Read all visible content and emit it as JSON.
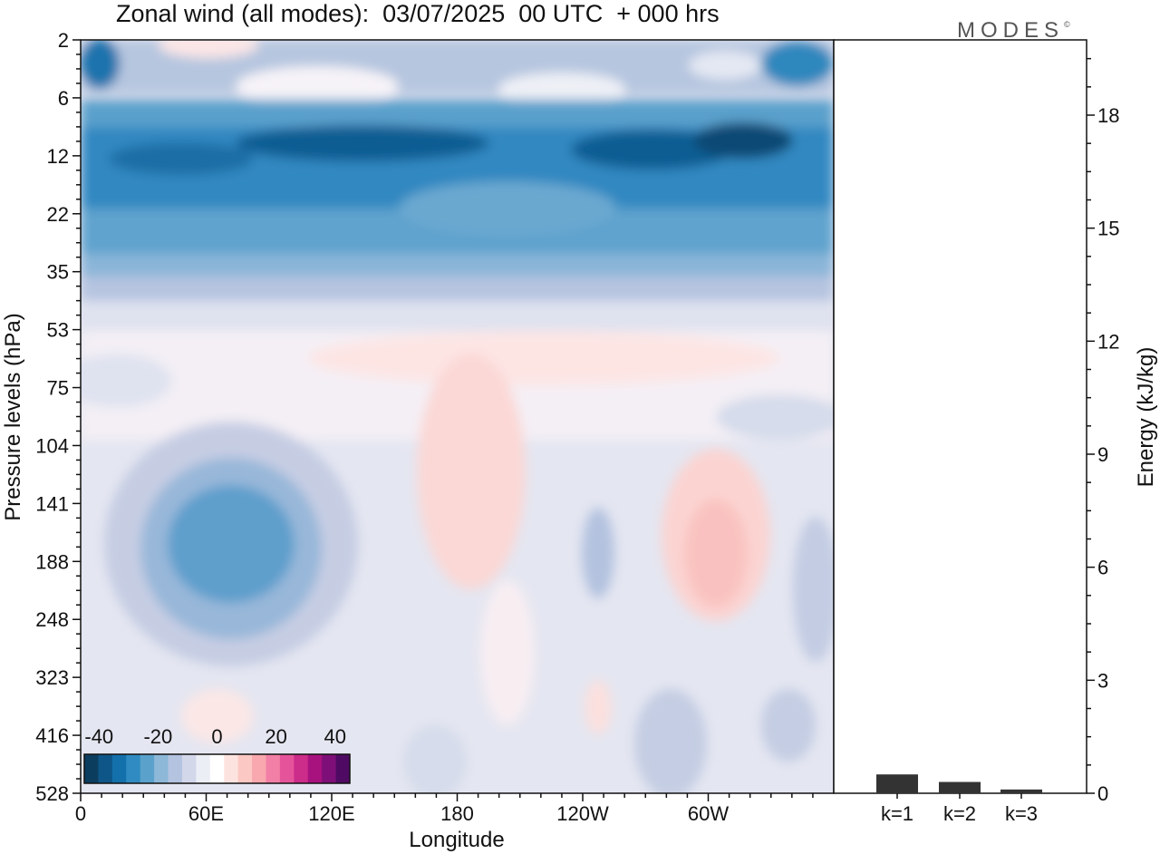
{
  "title": "Zonal wind (all modes):  03/07/2025  00 UTC  + 000 hrs",
  "logo": {
    "text": "MODES",
    "mark": "©"
  },
  "chart_data": [
    {
      "type": "heatmap",
      "title": "Zonal wind (all modes):  03/07/2025  00 UTC  + 000 hrs",
      "xlabel": "Longitude",
      "ylabel": "Pressure levels (hPa)",
      "x_ticks": [
        "0",
        "60E",
        "120E",
        "180",
        "120W",
        "60W"
      ],
      "y_ticks": [
        "2",
        "6",
        "12",
        "22",
        "35",
        "53",
        "75",
        "104",
        "141",
        "188",
        "248",
        "323",
        "416",
        "528"
      ],
      "colorbar": {
        "tick_labels": [
          "-40",
          "-20",
          "0",
          "20",
          "40"
        ],
        "range": [
          -45,
          45
        ],
        "colors": [
          "#0b3d5f",
          "#0e5688",
          "#1470ab",
          "#2f8bc1",
          "#5aa2cc",
          "#8db8d8",
          "#b3c3e0",
          "#d3d7ea",
          "#eceef6",
          "#ffffff",
          "#fde3e0",
          "#fbc8c4",
          "#f8a8ae",
          "#f27fa5",
          "#e5549a",
          "#cc2c8a",
          "#a8127f",
          "#7e0f78",
          "#4f0b63"
        ]
      },
      "description_bands": [
        {
          "pressure_range": [
            2,
            8
          ],
          "wind_range": [
            -35,
            -5
          ]
        },
        {
          "pressure_range": [
            8,
            30
          ],
          "wind_range": [
            -40,
            -25
          ]
        },
        {
          "pressure_range": [
            30,
            50
          ],
          "wind_range": [
            -25,
            -5
          ]
        },
        {
          "pressure_range": [
            53,
            110
          ],
          "wind_range": [
            -5,
            5
          ]
        },
        {
          "pressure_range": [
            110,
            330
          ],
          "wind_range": [
            -25,
            5
          ]
        },
        {
          "pressure_range": [
            330,
            528
          ],
          "wind_range": [
            -10,
            3
          ]
        }
      ]
    },
    {
      "type": "bar",
      "categories": [
        "k=1",
        "k=2",
        "k=3"
      ],
      "values": [
        0.05,
        0.03,
        0.01
      ],
      "ylabel": "Energy (kJ/kg)",
      "ylim": [
        0,
        20
      ],
      "y_ticks": [
        "0",
        "3",
        "6",
        "9",
        "12",
        "15",
        "18"
      ]
    }
  ]
}
